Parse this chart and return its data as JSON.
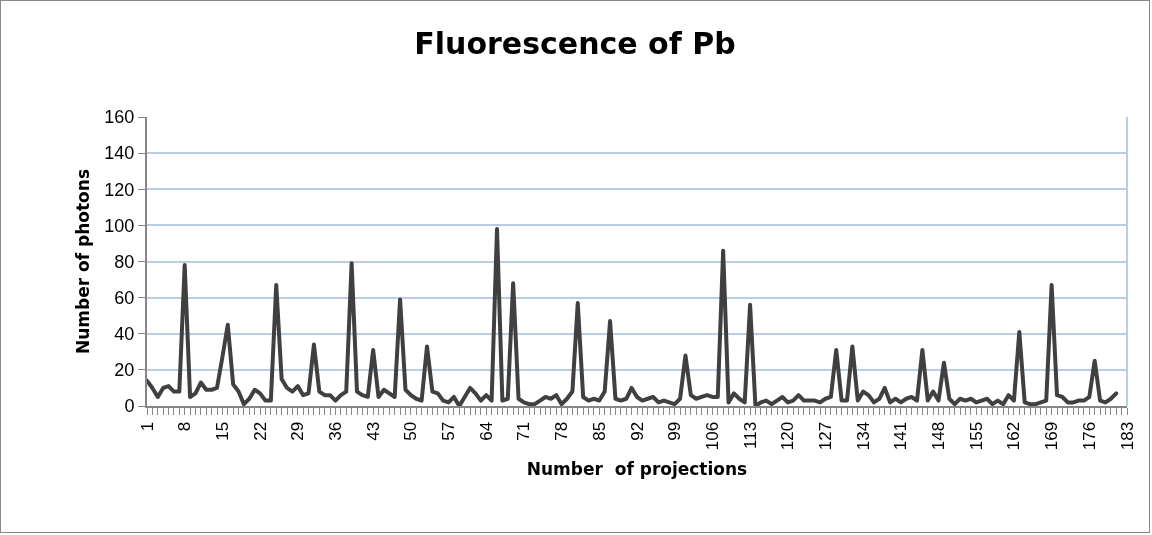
{
  "chart_data": {
    "type": "line",
    "title": "Fluorescence of Pb",
    "xlabel": "Number  of projections",
    "ylabel": "Number of photons",
    "categories": [
      "1",
      null,
      null,
      null,
      null,
      null,
      null,
      "8",
      null,
      null,
      null,
      null,
      null,
      null,
      "15",
      null,
      null,
      null,
      null,
      null,
      null,
      "22",
      null,
      null,
      null,
      null,
      null,
      null,
      "29",
      null,
      null,
      null,
      null,
      null,
      null,
      "36",
      null,
      null,
      null,
      null,
      null,
      null,
      "43",
      null,
      null,
      null,
      null,
      null,
      null,
      "50",
      null,
      null,
      null,
      null,
      null,
      null,
      "57",
      null,
      null,
      null,
      null,
      null,
      null,
      "64",
      null,
      null,
      null,
      null,
      null,
      null,
      "71",
      null,
      null,
      null,
      null,
      null,
      null,
      "78",
      null,
      null,
      null,
      null,
      null,
      null,
      "85",
      null,
      null,
      null,
      null,
      null,
      null,
      "92",
      null,
      null,
      null,
      null,
      null,
      null,
      "99",
      null,
      null,
      null,
      null,
      null,
      null,
      "106",
      null,
      null,
      null,
      null,
      null,
      null,
      "113",
      null,
      null,
      null,
      null,
      null,
      null,
      "120",
      null,
      null,
      null,
      null,
      null,
      null,
      "127",
      null,
      null,
      null,
      null,
      null,
      null,
      "134",
      null,
      null,
      null,
      null,
      null,
      null,
      "141",
      null,
      null,
      null,
      null,
      null,
      null,
      "148",
      null,
      null,
      null,
      null,
      null,
      null,
      "155",
      null,
      null,
      null,
      null,
      null,
      null,
      "162",
      null,
      null,
      null,
      null,
      null,
      null,
      "169",
      null,
      null,
      null,
      null,
      null,
      null,
      "176",
      null,
      null,
      null,
      null,
      null,
      null,
      "183"
    ],
    "series": [
      {
        "color": "#404040",
        "values": [
          14,
          10,
          5,
          10,
          11,
          8,
          8,
          78,
          5,
          7,
          13,
          9,
          9,
          10,
          27,
          45,
          12,
          8,
          1,
          4,
          9,
          7,
          3,
          3,
          67,
          15,
          10,
          8,
          11,
          6,
          7,
          34,
          8,
          6,
          6,
          3,
          6,
          8,
          79,
          8,
          6,
          5,
          31,
          5,
          9,
          7,
          5,
          59,
          9,
          6,
          4,
          3,
          33,
          8,
          7,
          3,
          2,
          5,
          0,
          5,
          10,
          7,
          3,
          6,
          3,
          98,
          3,
          4,
          68,
          4,
          2,
          1,
          1,
          3,
          5,
          4,
          6,
          1,
          4,
          8,
          57,
          5,
          3,
          4,
          3,
          8,
          47,
          4,
          3,
          4,
          10,
          5,
          3,
          4,
          5,
          2,
          3,
          2,
          1,
          4,
          28,
          6,
          4,
          5,
          6,
          5,
          5,
          86,
          2,
          7,
          4,
          2,
          56,
          0,
          2,
          3,
          1,
          3,
          5,
          2,
          3,
          6,
          3,
          3,
          3,
          2,
          4,
          5,
          31,
          3,
          3,
          33,
          3,
          8,
          6,
          2,
          4,
          10,
          2,
          4,
          2,
          4,
          5,
          3,
          31,
          3,
          8,
          3,
          24,
          4,
          1,
          4,
          3,
          4,
          2,
          3,
          4,
          1,
          3,
          1,
          6,
          3,
          41,
          2,
          1,
          1,
          2,
          3,
          67,
          6,
          5,
          2,
          2,
          3,
          3,
          5,
          25,
          3,
          2,
          4,
          7,
          null,
          null
        ]
      }
    ],
    "ylim": [
      0,
      160
    ],
    "yticks": [
      0,
      20,
      40,
      60,
      80,
      100,
      120,
      140,
      160
    ],
    "grid": "y",
    "marker": "none",
    "line_style": "solid"
  }
}
